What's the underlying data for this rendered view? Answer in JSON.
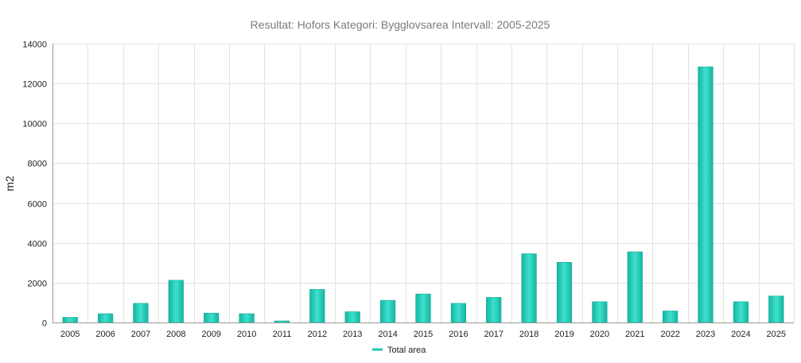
{
  "chart_data": {
    "type": "bar",
    "title": "Resultat: Hofors Kategori: Bygglovsarea Intervall: 2005-2025",
    "xlabel": "",
    "ylabel": "m2",
    "ylim": [
      0,
      14000
    ],
    "yticks": [
      0,
      2000,
      4000,
      6000,
      8000,
      10000,
      12000,
      14000
    ],
    "categories": [
      "2005",
      "2006",
      "2007",
      "2008",
      "2009",
      "2010",
      "2011",
      "2012",
      "2013",
      "2014",
      "2015",
      "2016",
      "2017",
      "2018",
      "2019",
      "2020",
      "2021",
      "2022",
      "2023",
      "2024",
      "2025"
    ],
    "series": [
      {
        "name": "Total area",
        "color": "#1fc8b4",
        "values": [
          260,
          440,
          960,
          2120,
          470,
          440,
          80,
          1660,
          540,
          1110,
          1430,
          960,
          1260,
          3450,
          3020,
          1040,
          3550,
          580,
          12840,
          1040,
          1330
        ]
      }
    ],
    "grid": true,
    "legend_position": "bottom-center"
  }
}
